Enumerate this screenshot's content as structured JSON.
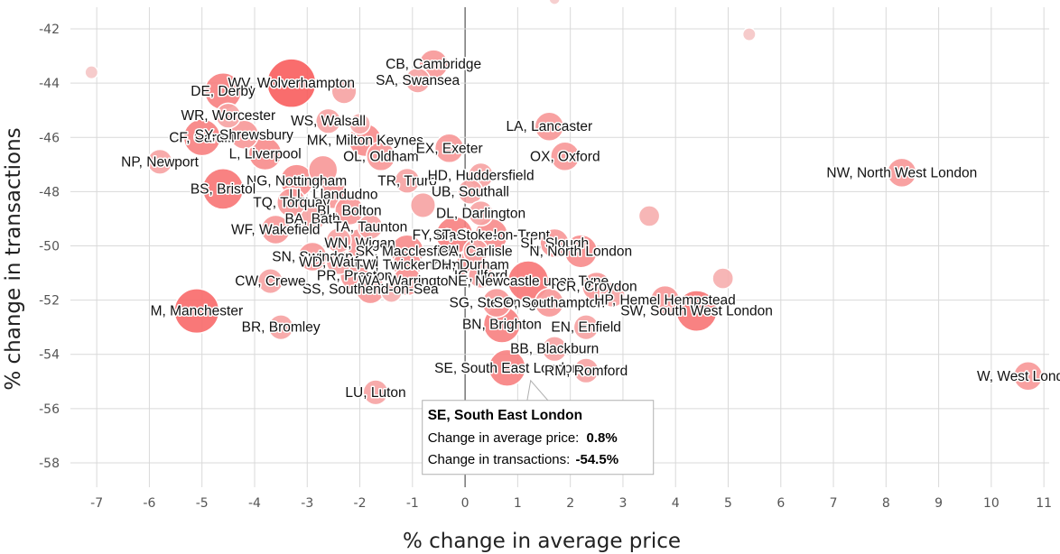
{
  "chart_data": {
    "type": "scatter",
    "title": "",
    "xlabel": "% change in average price",
    "ylabel": "% change in transactions",
    "xlim": [
      -7.5,
      11.1
    ],
    "ylim": [
      -58.9,
      -41.2
    ],
    "xticks": [
      -7,
      -6,
      -5,
      -4,
      -3,
      -2,
      -1,
      0,
      1,
      2,
      3,
      4,
      5,
      6,
      7,
      8,
      9,
      10,
      11
    ],
    "yticks": [
      -42,
      -44,
      -46,
      -48,
      -50,
      -52,
      -54,
      -56,
      -58
    ],
    "grid": true,
    "legend": "none",
    "colors": {
      "bubble_high": "#f85d5d",
      "bubble_low": "#f5d0d0",
      "grid": "#d9d9d9"
    },
    "points": [
      {
        "label": "CB, Cambridge",
        "x": -0.6,
        "y": -43.3,
        "size": 0.5
      },
      {
        "label": "SA, Swansea",
        "x": -0.9,
        "y": -43.9,
        "size": 0.4
      },
      {
        "label": "WV, Wolverhampton",
        "x": -3.3,
        "y": -44.0,
        "size": 1.0
      },
      {
        "label": "DE, Derby",
        "x": -4.6,
        "y": -44.3,
        "size": 0.7
      },
      {
        "label": "WR, Worcester",
        "x": -4.5,
        "y": -45.2,
        "size": 0.4
      },
      {
        "label": "WS, Walsall",
        "x": -2.6,
        "y": -45.4,
        "size": 0.4
      },
      {
        "label": "CF, Cardiff",
        "x": -5.0,
        "y": -46.0,
        "size": 0.7
      },
      {
        "label": "SY, Shrewsbury",
        "x": -4.2,
        "y": -45.9,
        "size": 0.5
      },
      {
        "label": "MK, Milton Keynes",
        "x": -1.9,
        "y": -46.1,
        "size": 0.6
      },
      {
        "label": "L, Liverpool",
        "x": -3.8,
        "y": -46.6,
        "size": 0.6
      },
      {
        "label": "OL, Oldham",
        "x": -1.6,
        "y": -46.7,
        "size": 0.5
      },
      {
        "label": "EX, Exeter",
        "x": -0.3,
        "y": -46.4,
        "size": 0.5
      },
      {
        "label": "NP, Newport",
        "x": -5.8,
        "y": -46.9,
        "size": 0.4
      },
      {
        "label": "LA, Lancaster",
        "x": 1.6,
        "y": -45.6,
        "size": 0.5
      },
      {
        "label": "OX, Oxford",
        "x": 1.9,
        "y": -46.7,
        "size": 0.5
      },
      {
        "label": "NW, North West London",
        "x": 8.3,
        "y": -47.3,
        "size": 0.5
      },
      {
        "label": "NG, Nottingham",
        "x": -3.2,
        "y": -47.6,
        "size": 0.6
      },
      {
        "label": "TR, Truro",
        "x": -1.1,
        "y": -47.6,
        "size": 0.4
      },
      {
        "label": "HD, Huddersfield",
        "x": 0.3,
        "y": -47.4,
        "size": 0.4
      },
      {
        "label": "BS, Bristol",
        "x": -4.6,
        "y": -47.9,
        "size": 0.8
      },
      {
        "label": "LL, Llandudno",
        "x": -2.5,
        "y": -48.1,
        "size": 0.5
      },
      {
        "label": "UB, Southall",
        "x": 0.1,
        "y": -48.0,
        "size": 0.4
      },
      {
        "label": "TQ, Torquay",
        "x": -3.3,
        "y": -48.4,
        "size": 0.5
      },
      {
        "label": "BL, Bolton",
        "x": -2.2,
        "y": -48.7,
        "size": 0.5
      },
      {
        "label": "DL, Darlington",
        "x": 0.3,
        "y": -48.8,
        "size": 0.4
      },
      {
        "label": "BA, Bath",
        "x": -2.9,
        "y": -49.0,
        "size": 0.4
      },
      {
        "label": "TA, Taunton",
        "x": -1.8,
        "y": -49.3,
        "size": 0.4
      },
      {
        "label": "WF, Wakefield",
        "x": -3.6,
        "y": -49.4,
        "size": 0.5
      },
      {
        "label": "FY, Blackpool",
        "x": -0.2,
        "y": -49.6,
        "size": 0.7
      },
      {
        "label": "ST, Stoke-on-Trent",
        "x": 0.5,
        "y": -49.6,
        "size": 0.6
      },
      {
        "label": "WN, Wigan",
        "x": -2.0,
        "y": -49.9,
        "size": 0.5
      },
      {
        "label": "SK, Macclesfield",
        "x": -1.1,
        "y": -50.2,
        "size": 0.6
      },
      {
        "label": "CA, Carlisle",
        "x": 0.2,
        "y": -50.2,
        "size": 0.4
      },
      {
        "label": "SL, Slough",
        "x": 1.7,
        "y": -49.9,
        "size": 0.5
      },
      {
        "label": "N, North London",
        "x": 2.2,
        "y": -50.2,
        "size": 0.6
      },
      {
        "label": "SN, Swindon",
        "x": -2.9,
        "y": -50.4,
        "size": 0.5
      },
      {
        "label": "WD, Watford",
        "x": -2.4,
        "y": -50.6,
        "size": 0.4
      },
      {
        "label": "TW, Twickenham",
        "x": -1.1,
        "y": -50.7,
        "size": 0.5
      },
      {
        "label": "DH, Durham",
        "x": 0.1,
        "y": -50.7,
        "size": 0.5
      },
      {
        "label": "PR, Preston",
        "x": -2.1,
        "y": -51.1,
        "size": 0.5
      },
      {
        "label": "IG, Ilford",
        "x": 0.3,
        "y": -51.1,
        "size": 0.4
      },
      {
        "label": "WA, Warrington",
        "x": -1.1,
        "y": -51.3,
        "size": 0.5
      },
      {
        "label": "NE, Newcastle upon Tyne",
        "x": 1.2,
        "y": -51.3,
        "size": 0.8
      },
      {
        "label": "CR, Croydon",
        "x": 2.5,
        "y": -51.5,
        "size": 0.5
      },
      {
        "label": "SS, Southend-on-Sea",
        "x": -1.8,
        "y": -51.6,
        "size": 0.5
      },
      {
        "label": "CW, Crewe",
        "x": -3.7,
        "y": -51.3,
        "size": 0.4
      },
      {
        "label": "M, Manchester",
        "x": -5.1,
        "y": -52.4,
        "size": 0.9
      },
      {
        "label": "SG, Stevenage",
        "x": 0.6,
        "y": -52.1,
        "size": 0.5
      },
      {
        "label": "SO, Southampton",
        "x": 1.6,
        "y": -52.1,
        "size": 0.5
      },
      {
        "label": "HP, Hemel Hempstead",
        "x": 3.8,
        "y": -52.0,
        "size": 0.5
      },
      {
        "label": "SW, South West London",
        "x": 4.4,
        "y": -52.4,
        "size": 0.8
      },
      {
        "label": "BR, Bromley",
        "x": -3.5,
        "y": -53.0,
        "size": 0.4
      },
      {
        "label": "BN, Brighton",
        "x": 0.7,
        "y": -52.9,
        "size": 0.7
      },
      {
        "label": "EN, Enfield",
        "x": 2.3,
        "y": -53.0,
        "size": 0.4
      },
      {
        "label": "BB, Blackburn",
        "x": 1.7,
        "y": -53.8,
        "size": 0.4
      },
      {
        "label": "SE, South East London",
        "x": 0.8,
        "y": -54.5,
        "size": 0.7
      },
      {
        "label": "RM, Romford",
        "x": 2.3,
        "y": -54.6,
        "size": 0.4
      },
      {
        "label": "LU, Luton",
        "x": -1.7,
        "y": -55.4,
        "size": 0.4
      },
      {
        "label": "W, West London",
        "x": 10.7,
        "y": -54.8,
        "size": 0.5
      },
      {
        "label": "",
        "x": -7.1,
        "y": -43.6,
        "size": 0.1
      },
      {
        "label": "",
        "x": 1.7,
        "y": -40.9,
        "size": 0.05
      },
      {
        "label": "",
        "x": 5.4,
        "y": -42.2,
        "size": 0.1
      },
      {
        "label": "",
        "x": 3.5,
        "y": -48.9,
        "size": 0.3
      },
      {
        "label": "",
        "x": 4.9,
        "y": -51.2,
        "size": 0.3
      },
      {
        "label": "",
        "x": -2.3,
        "y": -44.3,
        "size": 0.4
      },
      {
        "label": "",
        "x": -2.0,
        "y": -45.5,
        "size": 0.3
      },
      {
        "label": "",
        "x": -2.7,
        "y": -47.2,
        "size": 0.5
      },
      {
        "label": "",
        "x": -0.8,
        "y": -48.5,
        "size": 0.4
      },
      {
        "label": "",
        "x": -2.4,
        "y": -49.8,
        "size": 0.4
      },
      {
        "label": "",
        "x": -1.4,
        "y": -51.7,
        "size": 0.3
      },
      {
        "label": "",
        "x": 2.8,
        "y": -51.8,
        "size": 0.4
      }
    ],
    "tooltip": {
      "title": "SE, South East London",
      "price_label": "Change in average price:",
      "price_value": "0.8%",
      "trans_label": "Change in transactions:",
      "trans_value": "-54.5%",
      "anchor": {
        "x": 0.8,
        "y": -54.5
      }
    }
  }
}
